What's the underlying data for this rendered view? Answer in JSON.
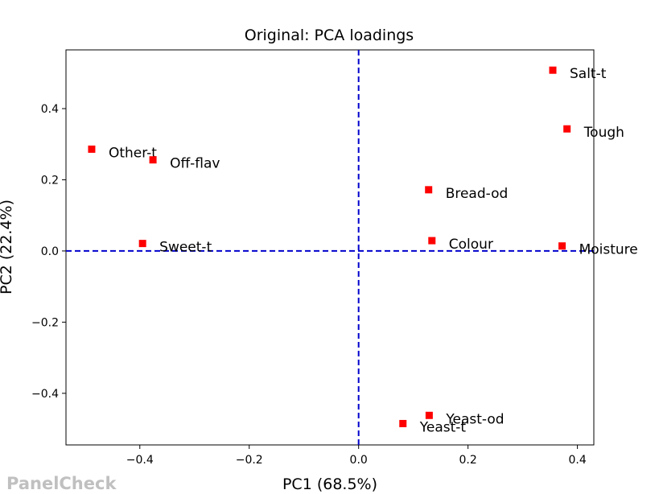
{
  "chart_data": {
    "type": "scatter",
    "title": "Original: PCA loadings",
    "xlabel": "PC1 (68.5%)",
    "ylabel": "PC2 (22.4%)",
    "xlim": [
      -0.535,
      0.43
    ],
    "ylim": [
      -0.545,
      0.565
    ],
    "xticks": [
      -0.4,
      -0.2,
      0.0,
      0.2,
      0.4
    ],
    "xtick_labels": [
      "−0.4",
      "−0.2",
      "0.0",
      "0.2",
      "0.4"
    ],
    "yticks": [
      -0.4,
      -0.2,
      0.0,
      0.2,
      0.4
    ],
    "ytick_labels": [
      "−0.4",
      "−0.2",
      "0.0",
      "0.2",
      "0.4"
    ],
    "grid": false,
    "reference_lines": {
      "x": 0,
      "y": 0,
      "style": "dashed",
      "color": "#0000cc"
    },
    "marker_color": "#ff0000",
    "points": [
      {
        "label": "Salt-t",
        "x": 0.355,
        "y": 0.508
      },
      {
        "label": "Tough",
        "x": 0.381,
        "y": 0.343
      },
      {
        "label": "Other-t",
        "x": -0.488,
        "y": 0.286
      },
      {
        "label": "Off-flav",
        "x": -0.376,
        "y": 0.256
      },
      {
        "label": "Bread-od",
        "x": 0.128,
        "y": 0.172
      },
      {
        "label": "Sweet-t",
        "x": -0.395,
        "y": 0.021
      },
      {
        "label": "Colour",
        "x": 0.134,
        "y": 0.029
      },
      {
        "label": "Moisture",
        "x": 0.372,
        "y": 0.014
      },
      {
        "label": "Yeast-od",
        "x": 0.129,
        "y": -0.462
      },
      {
        "label": "Yeast-t",
        "x": 0.081,
        "y": -0.485
      }
    ]
  },
  "watermark": "PanelCheck"
}
